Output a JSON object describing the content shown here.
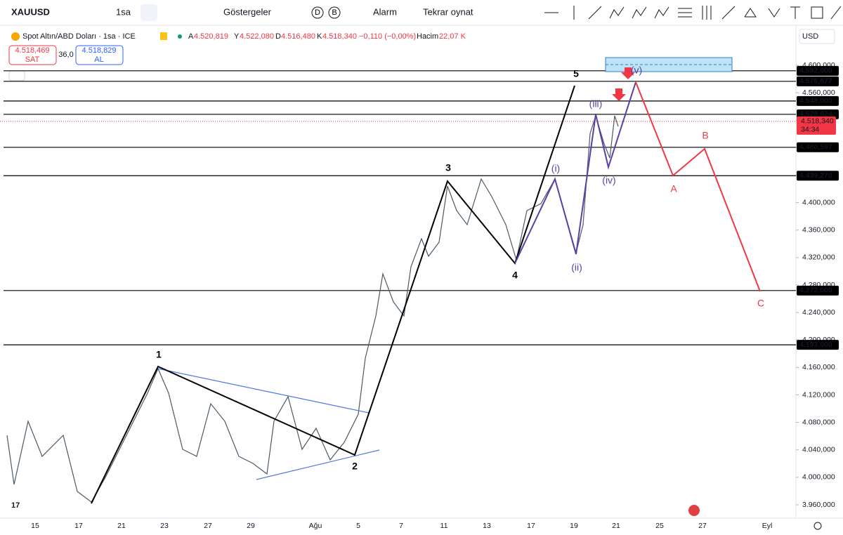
{
  "toolbar": {
    "symbol": "XAUUSD",
    "interval": "1sa",
    "indicators": "Göstergeler",
    "d": "D",
    "b": "B",
    "alarm": "Alarm",
    "replay": "Tekrar oynat"
  },
  "legend": {
    "title": "Spot Altın/ABD Doları · 1sa · ICE",
    "open_label": "A",
    "open": "4.520,819",
    "high_label": "Y",
    "high": "4.522,080",
    "low_label": "D",
    "low": "4.516,480",
    "close_label": "K",
    "close": "4.518,340",
    "change": "−0,110 (−0,00%)",
    "volume_label": "Hacim",
    "volume": "22,07 K"
  },
  "trade": {
    "sell": "4.518,469",
    "sell_label": "SAT",
    "spread": "36,0",
    "buy": "4.518,829",
    "buy_label": "AL"
  },
  "currency": "USD",
  "price_axis": {
    "ylim": [
      3940,
      4620
    ],
    "yticks": [
      {
        "value": 4600,
        "label": "4.600,000"
      },
      {
        "value": 4560,
        "label": "4.560,000"
      },
      {
        "value": 4520,
        "label": "4.520,000"
      },
      {
        "value": 4480,
        "label": "4.480,000"
      },
      {
        "value": 4440,
        "label": "4.440,000"
      },
      {
        "value": 4400,
        "label": "4.400,000"
      },
      {
        "value": 4360,
        "label": "4.360,000"
      },
      {
        "value": 4320,
        "label": "4.320,000"
      },
      {
        "value": 4280,
        "label": "4.280,000"
      },
      {
        "value": 4240,
        "label": "4.240,000"
      },
      {
        "value": 4200,
        "label": "4.200,000"
      },
      {
        "value": 4160,
        "label": "4.160,000"
      },
      {
        "value": 4120,
        "label": "4.120,000"
      },
      {
        "value": 4080,
        "label": "4.080,000"
      },
      {
        "value": 4040,
        "label": "4.040,000"
      },
      {
        "value": 4000,
        "label": "4.000,000"
      },
      {
        "value": 3960,
        "label": "3.960,000"
      }
    ]
  },
  "levels": [
    {
      "value": 4592,
      "label": "4.592,000"
    },
    {
      "value": 4576.677,
      "label": "4.576,677"
    },
    {
      "value": 4548,
      "label": "4.548,000"
    },
    {
      "value": 4528.624,
      "label": "4.528,624"
    },
    {
      "value": 4480.597,
      "label": "4.480,597"
    },
    {
      "value": 4439.27,
      "label": "4.439,270"
    },
    {
      "value": 4272,
      "label": "4.272,000"
    },
    {
      "value": 4193,
      "label": "4.193,000"
    }
  ],
  "current_price": {
    "value": 4518.34,
    "label": "4.518,340",
    "countdown": "34:34"
  },
  "x_labels": [
    "15",
    "17",
    "21",
    "23",
    "27",
    "29",
    "Ağu",
    "5",
    "7",
    "11",
    "13",
    "17",
    "19",
    "21",
    "25",
    "27",
    "Eyl"
  ],
  "waves": [
    "1",
    "2",
    "3",
    "4",
    "5",
    "(i)",
    "(ii)",
    "(iii)",
    "(iv)",
    "(v)",
    "A",
    "B",
    "C"
  ]
}
